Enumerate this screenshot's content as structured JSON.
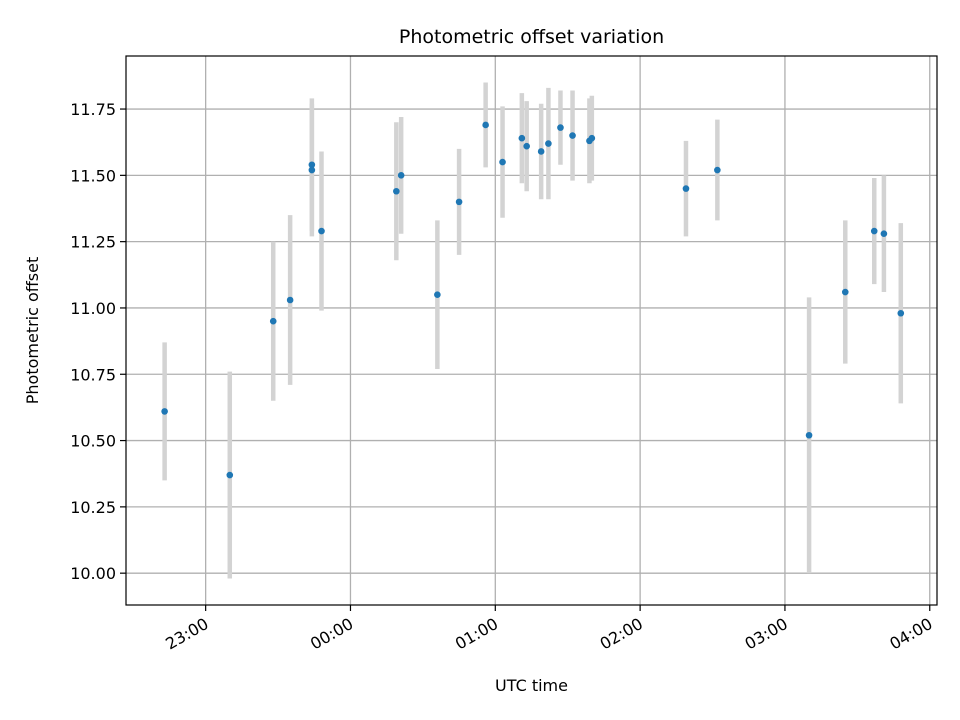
{
  "chart_data": {
    "type": "scatter",
    "title": "Photometric offset variation",
    "xlabel": "UTC time",
    "ylabel": "Photometric offset",
    "x_axis_type": "time",
    "xlim": [
      "22:27",
      "04:03"
    ],
    "ylim": [
      9.88,
      11.95
    ],
    "x_ticks": [
      "23:00",
      "00:00",
      "01:00",
      "02:00",
      "03:00",
      "04:00"
    ],
    "y_ticks": [
      10.0,
      10.25,
      10.5,
      10.75,
      11.0,
      11.25,
      11.5,
      11.75
    ],
    "grid": true,
    "legend": "none",
    "point_color": "#1f77b4",
    "errorbar_color": "#d3d3d3",
    "points": [
      {
        "x": "22:43",
        "y": 10.61,
        "err": 0.26
      },
      {
        "x": "23:10",
        "y": 10.37,
        "err": 0.39
      },
      {
        "x": "23:28",
        "y": 10.95,
        "err": 0.3
      },
      {
        "x": "23:35",
        "y": 11.03,
        "err": 0.32
      },
      {
        "x": "23:44",
        "y": 11.54,
        "err": 0.25
      },
      {
        "x": "23:44",
        "y": 11.52,
        "err": 0.25
      },
      {
        "x": "23:48",
        "y": 11.29,
        "err": 0.3
      },
      {
        "x": "00:19",
        "y": 11.44,
        "err": 0.26
      },
      {
        "x": "00:21",
        "y": 11.5,
        "err": 0.22
      },
      {
        "x": "00:36",
        "y": 11.05,
        "err": 0.28
      },
      {
        "x": "00:45",
        "y": 11.4,
        "err": 0.2
      },
      {
        "x": "00:56",
        "y": 11.69,
        "err": 0.16
      },
      {
        "x": "01:03",
        "y": 11.55,
        "err": 0.21
      },
      {
        "x": "01:11",
        "y": 11.64,
        "err": 0.17
      },
      {
        "x": "01:13",
        "y": 11.61,
        "err": 0.17
      },
      {
        "x": "01:19",
        "y": 11.59,
        "err": 0.18
      },
      {
        "x": "01:22",
        "y": 11.62,
        "err": 0.21
      },
      {
        "x": "01:27",
        "y": 11.68,
        "err": 0.14
      },
      {
        "x": "01:32",
        "y": 11.65,
        "err": 0.17
      },
      {
        "x": "01:39",
        "y": 11.63,
        "err": 0.16
      },
      {
        "x": "01:40",
        "y": 11.64,
        "err": 0.16
      },
      {
        "x": "02:19",
        "y": 11.45,
        "err": 0.18
      },
      {
        "x": "02:32",
        "y": 11.52,
        "err": 0.19
      },
      {
        "x": "03:10",
        "y": 10.52,
        "err": 0.52
      },
      {
        "x": "03:25",
        "y": 11.06,
        "err": 0.27
      },
      {
        "x": "03:37",
        "y": 11.29,
        "err": 0.2
      },
      {
        "x": "03:41",
        "y": 11.28,
        "err": 0.22
      },
      {
        "x": "03:48",
        "y": 10.98,
        "err": 0.34
      }
    ]
  }
}
